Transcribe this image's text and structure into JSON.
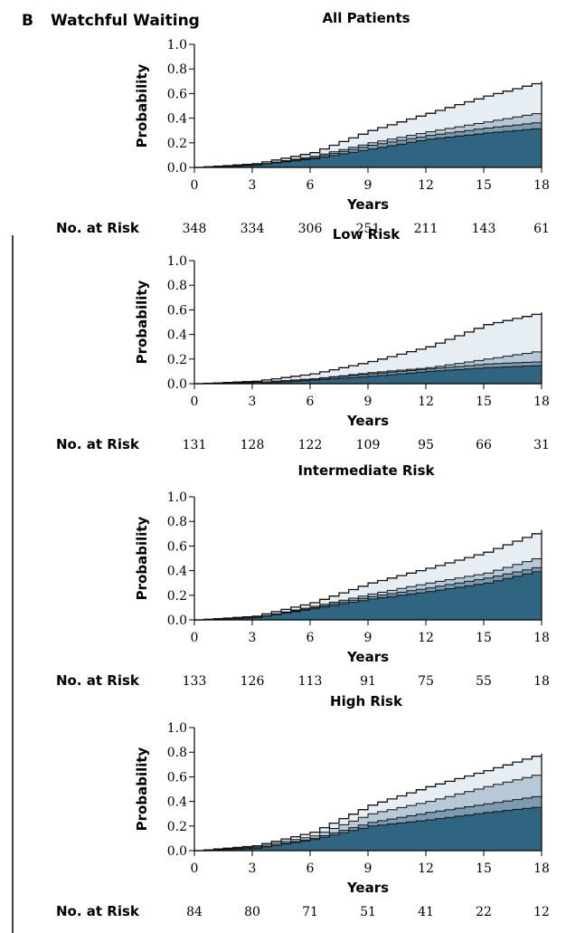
{
  "panel_letter": "B",
  "panel_title": "Watchful Waiting",
  "colors": {
    "band1": "#2f6580",
    "band2": "#7c9bb0",
    "band3": "#b7c9d6",
    "band4": "#e6eef3",
    "outline": "#111111",
    "axis": "#000000"
  },
  "chart_data": [
    {
      "type": "area",
      "title": "All Patients",
      "xlabel": "Years",
      "ylabel": "Probability",
      "xlim": [
        0,
        18
      ],
      "ylim": [
        0,
        1.0
      ],
      "x_ticks": [
        "0",
        "3",
        "6",
        "9",
        "12",
        "15",
        "18"
      ],
      "y_ticks": [
        "0.0",
        "0.2",
        "0.4",
        "0.6",
        "0.8",
        "1.0"
      ],
      "x": [
        0,
        3,
        6,
        9,
        12,
        15,
        18
      ],
      "series": [
        {
          "values": [
            0,
            0.02,
            0.07,
            0.15,
            0.23,
            0.28,
            0.32
          ]
        },
        {
          "values": [
            0,
            0.02,
            0.08,
            0.18,
            0.26,
            0.32,
            0.37
          ]
        },
        {
          "values": [
            0,
            0.02,
            0.09,
            0.2,
            0.29,
            0.37,
            0.45
          ]
        },
        {
          "values": [
            0,
            0.03,
            0.12,
            0.3,
            0.44,
            0.58,
            0.7
          ]
        }
      ],
      "risk_label": "No. at Risk",
      "at_risk": [
        "348",
        "334",
        "306",
        "251",
        "211",
        "143",
        "61"
      ]
    },
    {
      "type": "area",
      "title": "Low Risk",
      "xlabel": "Years",
      "ylabel": "Probability",
      "xlim": [
        0,
        18
      ],
      "ylim": [
        0,
        1.0
      ],
      "x_ticks": [
        "0",
        "3",
        "6",
        "9",
        "12",
        "15",
        "18"
      ],
      "y_ticks": [
        "0.0",
        "0.2",
        "0.4",
        "0.6",
        "0.8",
        "1.0"
      ],
      "x": [
        0,
        3,
        6,
        9,
        12,
        15,
        18
      ],
      "series": [
        {
          "values": [
            0,
            0.0,
            0.03,
            0.06,
            0.1,
            0.13,
            0.15
          ]
        },
        {
          "values": [
            0,
            0.01,
            0.04,
            0.08,
            0.12,
            0.16,
            0.18
          ]
        },
        {
          "values": [
            0,
            0.01,
            0.04,
            0.09,
            0.13,
            0.2,
            0.27
          ]
        },
        {
          "values": [
            0,
            0.02,
            0.08,
            0.18,
            0.3,
            0.48,
            0.58
          ]
        }
      ],
      "risk_label": "No. at Risk",
      "at_risk": [
        "131",
        "128",
        "122",
        "109",
        "95",
        "66",
        "31"
      ]
    },
    {
      "type": "area",
      "title": "Intermediate Risk",
      "xlabel": "Years",
      "ylabel": "Probability",
      "xlim": [
        0,
        18
      ],
      "ylim": [
        0,
        1.0
      ],
      "x_ticks": [
        "0",
        "3",
        "6",
        "9",
        "12",
        "15",
        "18"
      ],
      "y_ticks": [
        "0.0",
        "0.2",
        "0.4",
        "0.6",
        "0.8",
        "1.0"
      ],
      "x": [
        0,
        3,
        6,
        9,
        12,
        15,
        18
      ],
      "series": [
        {
          "values": [
            0,
            0.02,
            0.09,
            0.17,
            0.23,
            0.3,
            0.41
          ]
        },
        {
          "values": [
            0,
            0.02,
            0.1,
            0.19,
            0.26,
            0.34,
            0.44
          ]
        },
        {
          "values": [
            0,
            0.02,
            0.11,
            0.21,
            0.3,
            0.38,
            0.52
          ]
        },
        {
          "values": [
            0,
            0.03,
            0.14,
            0.3,
            0.42,
            0.55,
            0.73
          ]
        }
      ],
      "risk_label": "No. at Risk",
      "at_risk": [
        "133",
        "126",
        "113",
        "91",
        "75",
        "55",
        "18"
      ]
    },
    {
      "type": "area",
      "title": "High Risk",
      "xlabel": "Years",
      "ylabel": "Probability",
      "xlim": [
        0,
        18
      ],
      "ylim": [
        0,
        1.0
      ],
      "x_ticks": [
        "0",
        "3",
        "6",
        "9",
        "12",
        "15",
        "18"
      ],
      "y_ticks": [
        "0.0",
        "0.2",
        "0.4",
        "0.6",
        "0.8",
        "1.0"
      ],
      "x": [
        0,
        3,
        6,
        9,
        12,
        15,
        18
      ],
      "series": [
        {
          "values": [
            0,
            0.02,
            0.09,
            0.2,
            0.25,
            0.31,
            0.36
          ]
        },
        {
          "values": [
            0,
            0.02,
            0.1,
            0.23,
            0.31,
            0.38,
            0.45
          ]
        },
        {
          "values": [
            0,
            0.03,
            0.12,
            0.3,
            0.4,
            0.52,
            0.63
          ]
        },
        {
          "values": [
            0,
            0.04,
            0.15,
            0.37,
            0.52,
            0.65,
            0.79
          ]
        }
      ],
      "risk_label": "No. at Risk",
      "at_risk": [
        "84",
        "80",
        "71",
        "51",
        "41",
        "22",
        "12"
      ]
    }
  ]
}
